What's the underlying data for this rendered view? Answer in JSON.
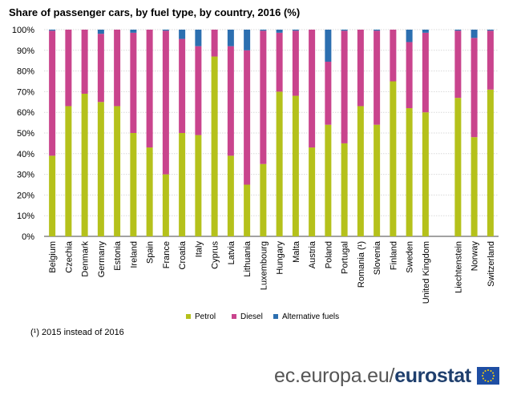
{
  "chart_data": {
    "type": "bar",
    "stacked": true,
    "title": "Share of passenger cars, by fuel type, by country, 2016 (%)",
    "xlabel": "",
    "ylabel": "",
    "ylim": [
      0,
      100
    ],
    "y_ticks": [
      "0%",
      "10%",
      "20%",
      "30%",
      "40%",
      "50%",
      "60%",
      "70%",
      "80%",
      "90%",
      "100%"
    ],
    "categories": [
      "Belgium",
      "Czechia",
      "Denmark",
      "Germany",
      "Estonia",
      "Ireland",
      "Spain",
      "France",
      "Croatia",
      "Italy",
      "Cyprus",
      "Latvia",
      "Lithuania",
      "Luxembourg",
      "Hungary",
      "Malta",
      "Austria",
      "Poland",
      "Portugal",
      "Romania  (¹)",
      "Slovenia",
      "Finland",
      "Sweden",
      "United Kingdom",
      "",
      "Liechtenstein",
      "Norway",
      "Switzerland"
    ],
    "series": [
      {
        "name": "Petrol",
        "color": "#b5c11b",
        "values": [
          39,
          63,
          69,
          65,
          63,
          50,
          43,
          30,
          50,
          49,
          87,
          39,
          25,
          35,
          70,
          68,
          43,
          54,
          45,
          63,
          54,
          75,
          62,
          60,
          null,
          67,
          48,
          71
        ]
      },
      {
        "name": "Diesel",
        "color": "#c9448d",
        "values": [
          60.5,
          37,
          31,
          33,
          37,
          48.5,
          57,
          69.5,
          45.5,
          43,
          13,
          53,
          65,
          64.5,
          28.5,
          31.5,
          57,
          30.5,
          54.5,
          37,
          45.5,
          25,
          32,
          38.5,
          null,
          32.5,
          48,
          28.5
        ]
      },
      {
        "name": "Alternative fuels",
        "color": "#2c6fb0",
        "values": [
          0.5,
          0,
          0,
          2,
          0,
          1.5,
          0,
          0.5,
          4.5,
          8,
          0,
          8,
          10,
          0.5,
          1.5,
          0.5,
          0,
          15.5,
          0.5,
          0,
          0.5,
          0,
          6,
          1.5,
          null,
          0.5,
          4,
          0.5
        ]
      }
    ],
    "legend_position": "bottom-center",
    "grid": true
  },
  "footnote": "(¹) 2015 instead of 2016",
  "branding": {
    "site": "ec.europa.eu/",
    "name": "eurostat",
    "flag_icon": "eu-flag-icon"
  }
}
